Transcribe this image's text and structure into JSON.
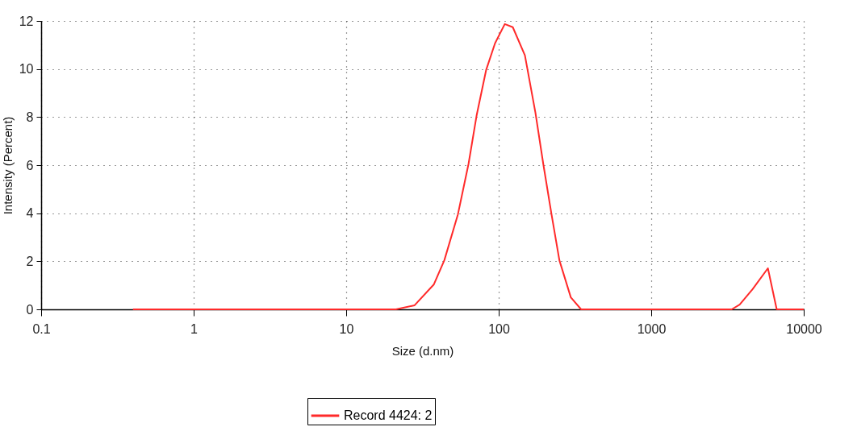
{
  "chart_data": {
    "type": "line",
    "xlabel": "Size (d.nm)",
    "ylabel": "Intensity (Percent)",
    "x": [
      0.4,
      21.2,
      28.1,
      37.6,
      44,
      54,
      63.4,
      71.6,
      82.8,
      94.6,
      109.6,
      123.7,
      148.5,
      174,
      196,
      222,
      250,
      297,
      347,
      3373,
      3800,
      4624,
      5821,
      6650,
      10000
    ],
    "series": [
      {
        "name": "Record 4424: 2",
        "color": "#ff2a2a",
        "values": [
          0,
          0,
          0.17,
          1.04,
          2.04,
          3.95,
          6.05,
          8.06,
          9.97,
          11.07,
          11.87,
          11.74,
          10.57,
          8.19,
          6.05,
          3.95,
          2.04,
          0.5,
          0,
          0,
          0.2,
          0.84,
          1.71,
          0,
          0
        ]
      }
    ],
    "log": "x",
    "xlim": [
      0.1,
      10000
    ],
    "xticks": [
      0.1,
      1,
      10,
      100,
      1000,
      10000
    ],
    "ylim": [
      0,
      12
    ],
    "yticks": [
      0,
      2,
      4,
      6,
      8,
      10,
      12
    ],
    "grid": true,
    "legend": "bottom",
    "marker": "none",
    "line_style": "solid"
  }
}
